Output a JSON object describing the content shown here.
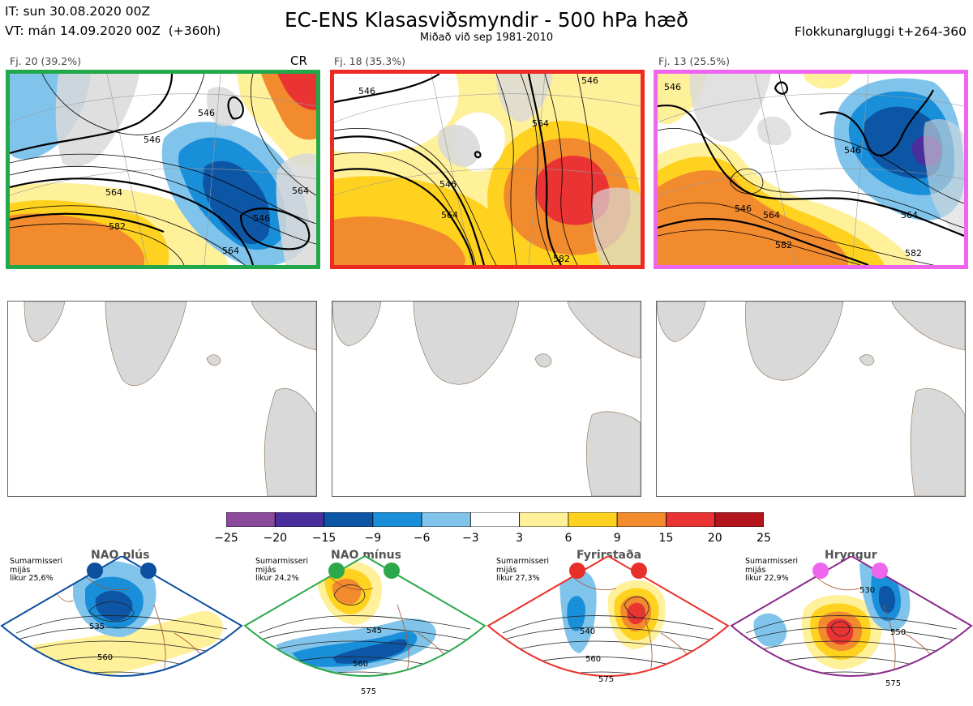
{
  "header": {
    "init_line": "IT: sun 30.08.2020 00Z",
    "valid_line": "VT: mán 14.09.2020 00Z  (+360h)",
    "title": "EC-ENS Klasasviðsmyndir - 500 hPa hæð",
    "subtitle": "Miðað við sep 1981-2010",
    "window": "Flokkunargluggi t+264-360"
  },
  "clusters": [
    {
      "label": "Fj. 20 (39.2%)",
      "frame_color": "#22a84a",
      "tag": "CR",
      "contours": [
        "546",
        "546",
        "564",
        "582",
        "564",
        "546",
        "564"
      ]
    },
    {
      "label": "Fj. 18 (35.3%)",
      "frame_color": "#ee2a24",
      "tag": "",
      "contours": [
        "546",
        "564",
        "546",
        "564",
        "582",
        "546"
      ]
    },
    {
      "label": "Fj. 13 (25.5%)",
      "frame_color": "#ee66ee",
      "tag": "",
      "contours": [
        "546",
        "546",
        "564",
        "582",
        "564",
        "582",
        "546"
      ]
    }
  ],
  "colorbar": {
    "labels": [
      "−25",
      "−20",
      "−15",
      "−9",
      "−6",
      "−3",
      "3",
      "6",
      "9",
      "15",
      "20",
      "25"
    ],
    "colors": [
      "#8b4a9c",
      "#4b2e9e",
      "#0d56a6",
      "#1a8fd9",
      "#80c4ec",
      "#ffffff",
      "#fff09a",
      "#ffd21f",
      "#f28a2e",
      "#ea3433",
      "#b4141c"
    ]
  },
  "regimes": [
    {
      "name": "NAO plús",
      "note": [
        "Sumarmisseri",
        "mijás",
        "likur 25,6%"
      ],
      "color": "#0c4f9e",
      "dot_color": "#0c4f9e",
      "labels": [
        "535",
        "560"
      ]
    },
    {
      "name": "NAO mínus",
      "note": [
        "Sumarmisseri",
        "mijás",
        "likur 24,2%"
      ],
      "color": "#2aa84a",
      "dot_color": "#2aa84a",
      "labels": [
        "545",
        "560",
        "575"
      ]
    },
    {
      "name": "Fyrirstaða",
      "note": [
        "Sumarmisseri",
        "mijás",
        "likur 27,3%"
      ],
      "color": "#e8302a",
      "dot_color": "#e8302a",
      "labels": [
        "540",
        "560",
        "575"
      ]
    },
    {
      "name": "Hryggur",
      "note": [
        "Sumarmisseri",
        "mijás",
        "likur 22,9%"
      ],
      "color": "#8a2a8a",
      "dot_color": "#ee66ee",
      "labels": [
        "530",
        "550",
        "575"
      ]
    }
  ]
}
